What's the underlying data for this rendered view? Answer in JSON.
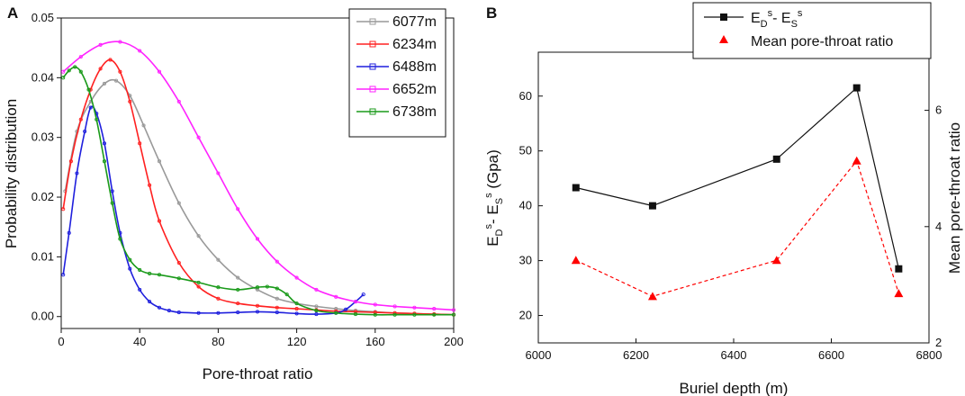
{
  "chart_data": [
    {
      "panel": "A",
      "type": "line",
      "xlabel": "Pore-throat ratio",
      "ylabel": "Probability distribution",
      "xlim": [
        0,
        200
      ],
      "ylim": [
        -0.002,
        0.05
      ],
      "xticks": [
        0,
        40,
        80,
        120,
        160,
        200
      ],
      "yticks": [
        0.0,
        0.01,
        0.02,
        0.03,
        0.04,
        0.05
      ],
      "ytick_labels": [
        "0.00",
        "0.01",
        "0.02",
        "0.03",
        "0.04",
        "0.05"
      ],
      "legend_position": "top-right",
      "series": [
        {
          "name": "6077m",
          "color": "#999999",
          "x": [
            2,
            8,
            15,
            22,
            28,
            35,
            42,
            50,
            60,
            70,
            80,
            90,
            100,
            110,
            120,
            130,
            140,
            150,
            160,
            170,
            180,
            190,
            200
          ],
          "y": [
            0.021,
            0.031,
            0.036,
            0.039,
            0.0395,
            0.037,
            0.032,
            0.026,
            0.019,
            0.0135,
            0.0095,
            0.0065,
            0.0045,
            0.003,
            0.0022,
            0.0017,
            0.0013,
            0.001,
            0.0008,
            0.0006,
            0.0005,
            0.0004,
            0.0003
          ]
        },
        {
          "name": "6234m",
          "color": "#ff2020",
          "x": [
            1,
            5,
            10,
            15,
            20,
            25,
            30,
            35,
            40,
            45,
            50,
            60,
            70,
            80,
            90,
            100,
            110,
            120,
            130,
            140,
            150,
            160,
            170,
            180,
            190,
            200
          ],
          "y": [
            0.018,
            0.026,
            0.033,
            0.038,
            0.0415,
            0.043,
            0.041,
            0.036,
            0.029,
            0.022,
            0.016,
            0.009,
            0.005,
            0.003,
            0.0022,
            0.0018,
            0.0015,
            0.0013,
            0.0011,
            0.0009,
            0.0008,
            0.0007,
            0.0006,
            0.0005,
            0.0004,
            0.0003
          ]
        },
        {
          "name": "6488m",
          "color": "#1f1fdd",
          "x": [
            1,
            4,
            8,
            12,
            15,
            18,
            22,
            26,
            30,
            35,
            40,
            45,
            50,
            55,
            60,
            70,
            80,
            90,
            100,
            110,
            120,
            130,
            140,
            145,
            150,
            154
          ],
          "y": [
            0.007,
            0.014,
            0.024,
            0.031,
            0.035,
            0.034,
            0.029,
            0.021,
            0.014,
            0.008,
            0.0045,
            0.0025,
            0.0015,
            0.001,
            0.0007,
            0.0006,
            0.0006,
            0.0007,
            0.0008,
            0.0007,
            0.0005,
            0.0004,
            0.0006,
            0.0012,
            0.0025,
            0.0037
          ]
        },
        {
          "name": "6652m",
          "color": "#ff22ff",
          "x": [
            1,
            10,
            20,
            30,
            40,
            50,
            60,
            70,
            80,
            90,
            100,
            110,
            120,
            130,
            140,
            150,
            160,
            170,
            180,
            190,
            200
          ],
          "y": [
            0.041,
            0.0435,
            0.0455,
            0.046,
            0.0445,
            0.041,
            0.036,
            0.03,
            0.024,
            0.018,
            0.013,
            0.0092,
            0.0065,
            0.0045,
            0.0033,
            0.0025,
            0.002,
            0.0017,
            0.0015,
            0.0013,
            0.0011
          ]
        },
        {
          "name": "6738m",
          "color": "#1a9a1a",
          "x": [
            1,
            4,
            7,
            10,
            14,
            18,
            22,
            26,
            30,
            35,
            40,
            45,
            50,
            60,
            70,
            80,
            90,
            100,
            105,
            110,
            115,
            120,
            130,
            140,
            150,
            160,
            170,
            180,
            190,
            200
          ],
          "y": [
            0.04,
            0.0412,
            0.0418,
            0.041,
            0.038,
            0.033,
            0.026,
            0.019,
            0.013,
            0.0095,
            0.0078,
            0.0072,
            0.007,
            0.0064,
            0.0057,
            0.0049,
            0.0045,
            0.0049,
            0.005,
            0.0047,
            0.0037,
            0.0022,
            0.001,
            0.0006,
            0.0004,
            0.0003,
            0.0003,
            0.0003,
            0.0003,
            0.0003
          ]
        }
      ]
    },
    {
      "panel": "B",
      "type": "line",
      "xlabel": "Buriel depth (m)",
      "ylabel_left_parts": [
        "E",
        "D",
        "s",
        "- E",
        "S",
        "s",
        " (Gpa)"
      ],
      "ylabel_right": "Mean pore-throat ratio",
      "xlim": [
        6000,
        6800
      ],
      "ylim_left": [
        15,
        68
      ],
      "ylim_right": [
        2,
        7
      ],
      "xticks": [
        6000,
        6200,
        6400,
        6600,
        6800
      ],
      "yticks_left": [
        20,
        30,
        40,
        50,
        60
      ],
      "yticks_right": [
        2,
        4,
        6
      ],
      "legend_position": "top-center",
      "series": [
        {
          "name_parts": [
            "E",
            "D",
            "s",
            "- E",
            "S",
            "s"
          ],
          "axis": "left",
          "color": "#111111",
          "marker": "square",
          "line": "solid",
          "x": [
            6077,
            6234,
            6488,
            6652,
            6738
          ],
          "y": [
            43.3,
            40.0,
            48.5,
            61.5,
            28.5
          ]
        },
        {
          "name": "Mean pore-throat ratio",
          "axis": "right",
          "color": "#ff0000",
          "marker": "triangle",
          "line": "dashed",
          "x": [
            6077,
            6234,
            6488,
            6652,
            6738
          ],
          "y": [
            3.42,
            2.8,
            3.42,
            5.13,
            2.85
          ]
        }
      ]
    }
  ],
  "panels": {
    "a_letter": "A",
    "b_letter": "B"
  }
}
